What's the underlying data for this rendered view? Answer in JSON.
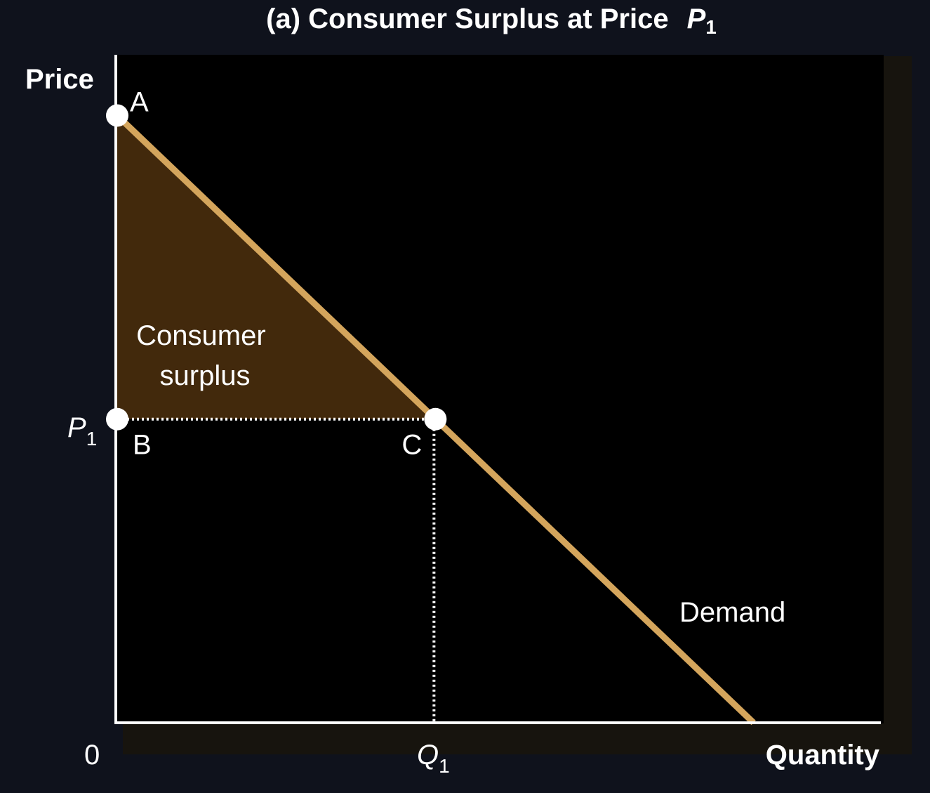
{
  "chart_data": {
    "type": "line",
    "title": "(a) Consumer Surplus at Price",
    "title_symbol": "P",
    "title_symbol_sub": "1",
    "xlabel": "Quantity",
    "ylabel": "Price",
    "origin_label": "0",
    "x_tick": {
      "symbol": "Q",
      "sub": "1"
    },
    "y_tick": {
      "symbol": "P",
      "sub": "1"
    },
    "demand_label": "Demand",
    "surplus_label_line1": "Consumer",
    "surplus_label_line2": "surplus",
    "points": [
      {
        "name": "A",
        "x": 0,
        "y": 1
      },
      {
        "name": "B",
        "x": 0,
        "y": 0.5
      },
      {
        "name": "C",
        "x": 0.5,
        "y": 0.5
      }
    ],
    "demand": {
      "x": [
        0,
        1
      ],
      "y": [
        1,
        0
      ]
    },
    "xlim": [
      0,
      1.2
    ],
    "ylim": [
      0,
      1.1
    ],
    "colors": {
      "background": "#0f121c",
      "plot_background": "#000000",
      "plot_shadow": "#17140e",
      "demand_line": "#d4a55c",
      "surplus_fill": "#42290c",
      "axes": "#ffffff",
      "text": "#ffffff"
    }
  }
}
